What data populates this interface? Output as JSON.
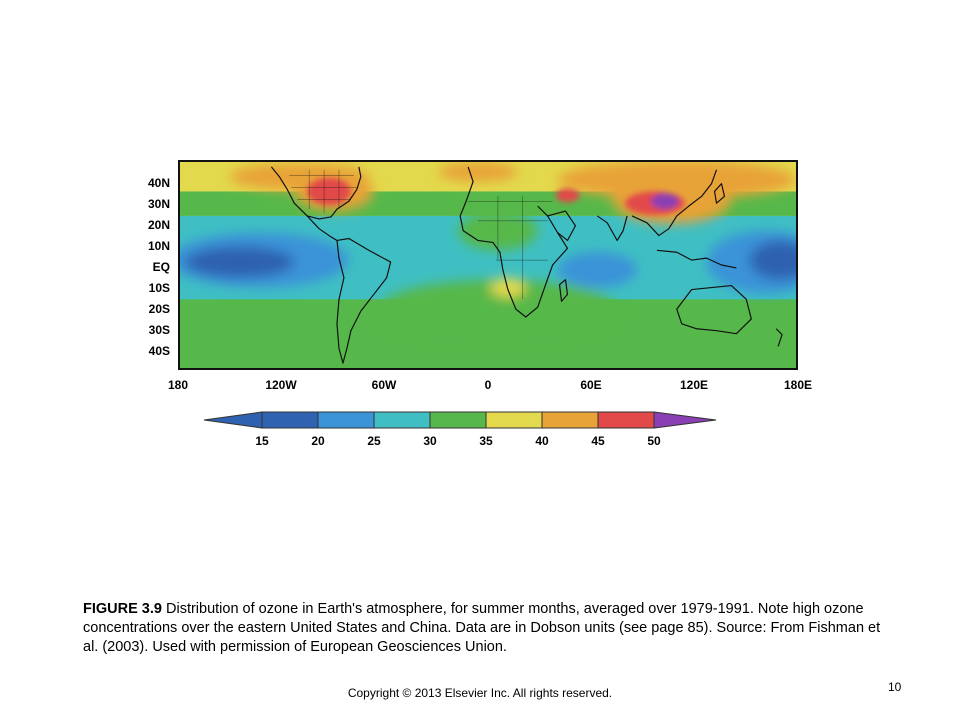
{
  "map": {
    "lat_labels": [
      "40N",
      "30N",
      "20N",
      "10N",
      "EQ",
      "10S",
      "20S",
      "30S",
      "40S"
    ],
    "lon_labels": [
      "180",
      "120W",
      "60W",
      "0",
      "60E",
      "120E",
      "180E"
    ]
  },
  "colorbar": {
    "tick_labels": [
      "15",
      "20",
      "25",
      "30",
      "35",
      "40",
      "45",
      "50"
    ],
    "colors": [
      "#2f62b0",
      "#3b93d8",
      "#3fbfc3",
      "#56b84a",
      "#e3d94c",
      "#e8a338",
      "#e24a4a",
      "#8a3fb4"
    ]
  },
  "caption": {
    "figure_label": "FIGURE 3.9",
    "text": " Distribution of ozone in Earth's atmosphere, for summer months, averaged over 1979-1991. Note high ozone concentrations over the eastern United States and China. Data are in Dobson units (see page 85). Source: From Fishman et al. (2003). Used with permission of European Geosciences Union."
  },
  "footer": {
    "copyright": "Copyright © 2013 Elsevier Inc. All rights reserved.",
    "page_number": "10"
  }
}
